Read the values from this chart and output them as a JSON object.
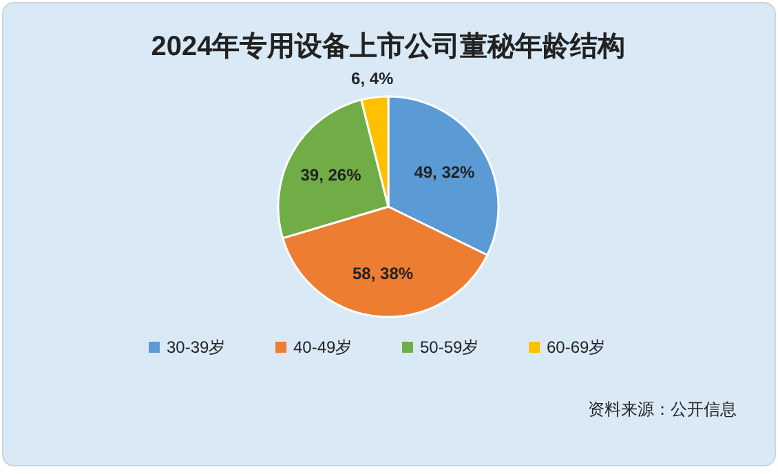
{
  "chart_data": {
    "type": "pie",
    "title": "2024年专用设备上市公司董秘年龄结构",
    "categories": [
      "30-39岁",
      "40-49岁",
      "50-59岁",
      "60-69岁"
    ],
    "values": [
      49,
      58,
      39,
      6
    ],
    "colors": [
      "#5b9bd5",
      "#ed7d31",
      "#70ad47",
      "#ffc000"
    ],
    "value_labels": [
      "49, 32%",
      "58, 38%",
      "39, 26%",
      "6, 4%"
    ],
    "legend": "bottom",
    "annotations": [
      "资料来源：公开信息"
    ]
  }
}
